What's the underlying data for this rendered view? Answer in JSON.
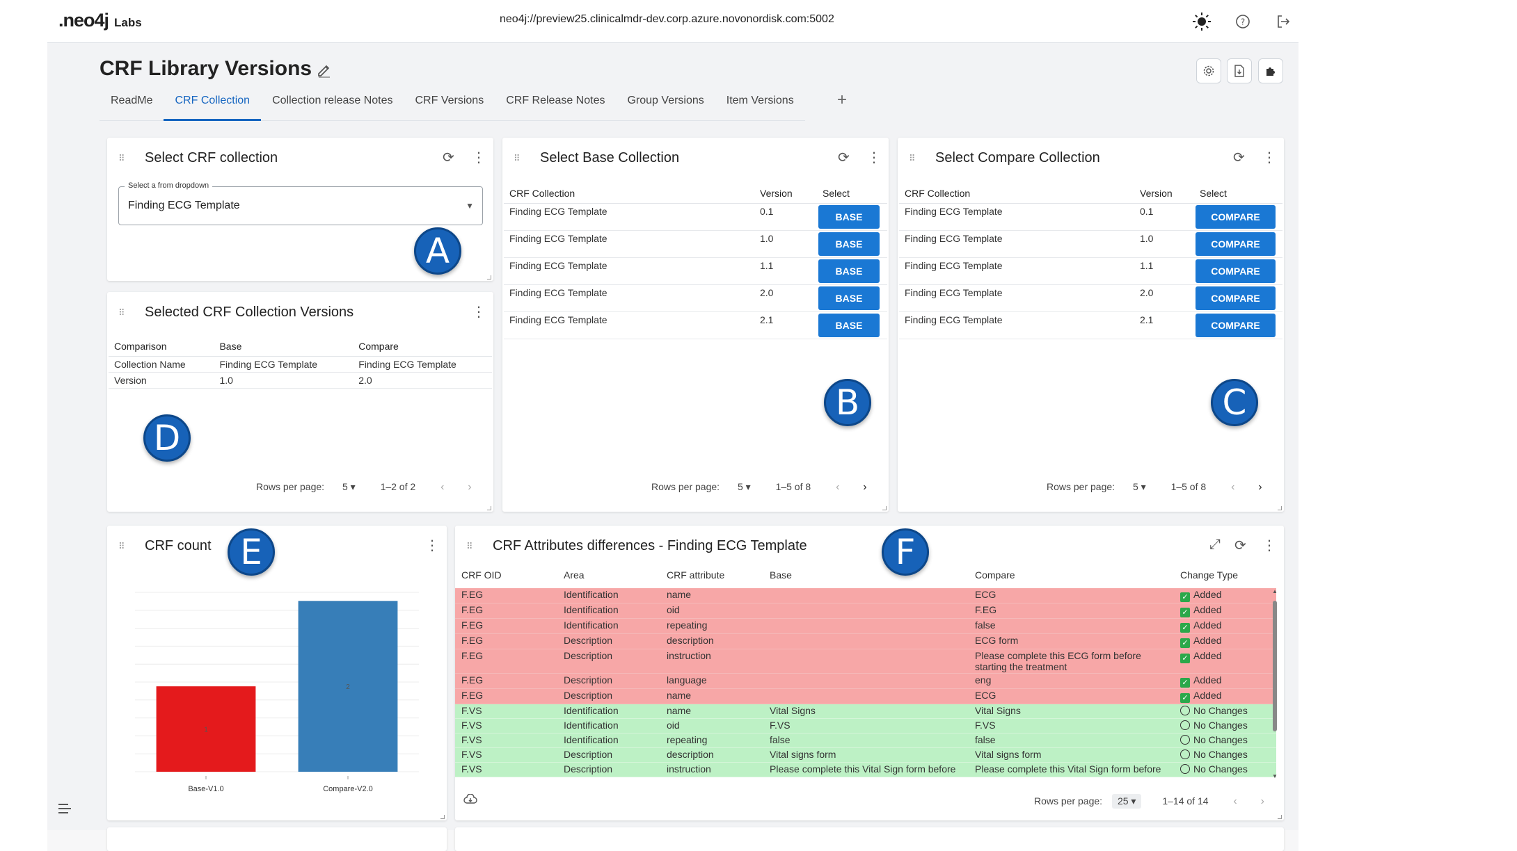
{
  "topbar": {
    "logo": ".neo4j",
    "logo_suffix": "Labs",
    "connection": "neo4j://preview25.clinicalmdr-dev.corp.azure.novonordisk.com:5002"
  },
  "page": {
    "title": "CRF Library Versions",
    "tabs": [
      "ReadMe",
      "CRF Collection",
      "Collection release Notes",
      "CRF Versions",
      "CRF Release Notes",
      "Group Versions",
      "Item Versions"
    ],
    "active_tab": "CRF Collection"
  },
  "markers": [
    "A",
    "B",
    "C",
    "D",
    "E",
    "F"
  ],
  "select_collection": {
    "title": "Select CRF collection",
    "label": "Select a from dropdown",
    "value": "Finding ECG Template"
  },
  "selected_versions": {
    "title": "Selected CRF Collection Versions",
    "headers": [
      "Comparison",
      "Base",
      "Compare"
    ],
    "rows": [
      [
        "Collection Name",
        "Finding ECG Template",
        "Finding ECG Template"
      ],
      [
        "Version",
        "1.0",
        "2.0"
      ]
    ],
    "rows_per_page_label": "Rows per page:",
    "rows_per_page": "5",
    "range": "1–2 of 2"
  },
  "base_collection": {
    "title": "Select Base Collection",
    "headers": [
      "CRF Collection",
      "Version",
      "Select"
    ],
    "rows": [
      {
        "name": "Finding ECG Template",
        "version": "0.1",
        "button": "BASE"
      },
      {
        "name": "Finding ECG Template",
        "version": "1.0",
        "button": "BASE"
      },
      {
        "name": "Finding ECG Template",
        "version": "1.1",
        "button": "BASE"
      },
      {
        "name": "Finding ECG Template",
        "version": "2.0",
        "button": "BASE"
      },
      {
        "name": "Finding ECG Template",
        "version": "2.1",
        "button": "BASE"
      }
    ],
    "rows_per_page_label": "Rows per page:",
    "rows_per_page": "5",
    "range": "1–5 of 8"
  },
  "compare_collection": {
    "title": "Select Compare Collection",
    "headers": [
      "CRF Collection",
      "Version",
      "Select"
    ],
    "rows": [
      {
        "name": "Finding ECG Template",
        "version": "0.1",
        "button": "COMPARE"
      },
      {
        "name": "Finding ECG Template",
        "version": "1.0",
        "button": "COMPARE"
      },
      {
        "name": "Finding ECG Template",
        "version": "1.1",
        "button": "COMPARE"
      },
      {
        "name": "Finding ECG Template",
        "version": "2.0",
        "button": "COMPARE"
      },
      {
        "name": "Finding ECG Template",
        "version": "2.1",
        "button": "COMPARE"
      }
    ],
    "rows_per_page_label": "Rows per page:",
    "rows_per_page": "5",
    "range": "1–5 of 8"
  },
  "crf_count": {
    "title": "CRF count"
  },
  "chart_data": {
    "type": "bar",
    "categories": [
      "Base-V1.0",
      "Compare-V2.0"
    ],
    "values": [
      1,
      2
    ],
    "colors": [
      "#e41a1c",
      "#377eb8"
    ],
    "ylim": [
      0,
      2.1
    ],
    "grid": true
  },
  "diff": {
    "title": "CRF Attributes differences - Finding ECG Template",
    "headers": [
      "CRF OID",
      "Area",
      "CRF attribute",
      "Base",
      "Compare",
      "Change Type"
    ],
    "rows": [
      {
        "oid": "F.EG",
        "area": "Identification",
        "attr": "name",
        "base": "",
        "compare": "ECG",
        "change": "Added"
      },
      {
        "oid": "F.EG",
        "area": "Identification",
        "attr": "oid",
        "base": "",
        "compare": "F.EG",
        "change": "Added"
      },
      {
        "oid": "F.EG",
        "area": "Identification",
        "attr": "repeating",
        "base": "",
        "compare": "false",
        "change": "Added"
      },
      {
        "oid": "F.EG",
        "area": "Description",
        "attr": "description",
        "base": "",
        "compare": "ECG form",
        "change": "Added"
      },
      {
        "oid": "F.EG",
        "area": "Description",
        "attr": "instruction",
        "base": "",
        "compare": "Please complete this ECG form before starting the treatment",
        "change": "Added"
      },
      {
        "oid": "F.EG",
        "area": "Description",
        "attr": "language",
        "base": "",
        "compare": "eng",
        "change": "Added"
      },
      {
        "oid": "F.EG",
        "area": "Description",
        "attr": "name",
        "base": "",
        "compare": "ECG",
        "change": "Added"
      },
      {
        "oid": "F.VS",
        "area": "Identification",
        "attr": "name",
        "base": "Vital Signs",
        "compare": "Vital Signs",
        "change": "No Changes"
      },
      {
        "oid": "F.VS",
        "area": "Identification",
        "attr": "oid",
        "base": "F.VS",
        "compare": "F.VS",
        "change": "No Changes"
      },
      {
        "oid": "F.VS",
        "area": "Identification",
        "attr": "repeating",
        "base": "false",
        "compare": "false",
        "change": "No Changes"
      },
      {
        "oid": "F.VS",
        "area": "Description",
        "attr": "description",
        "base": "Vital signs form",
        "compare": "Vital signs form",
        "change": "No Changes"
      },
      {
        "oid": "F.VS",
        "area": "Description",
        "attr": "instruction",
        "base": "Please complete this Vital Sign form before",
        "compare": "Please complete this Vital Sign form before",
        "change": "No Changes"
      }
    ],
    "rows_per_page_label": "Rows per page:",
    "rows_per_page": "25",
    "range": "1–14 of 14"
  }
}
